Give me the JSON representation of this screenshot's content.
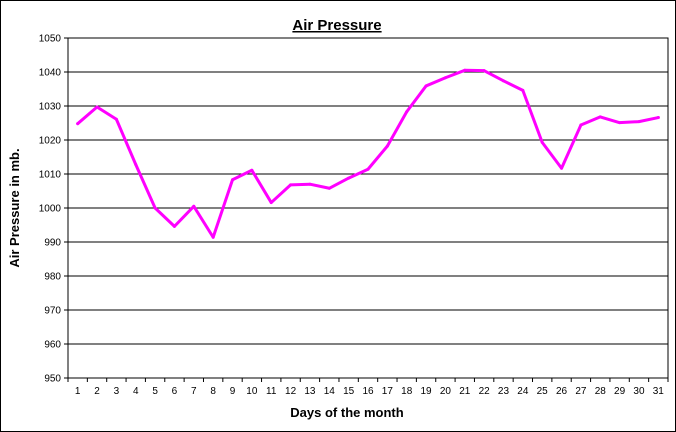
{
  "chart_data": {
    "type": "line",
    "title": "Air Pressure",
    "xlabel": "Days of the month",
    "ylabel": "Air Pressure in mb.",
    "ylim": [
      950,
      1050
    ],
    "ytick_step": 10,
    "grid": "horizontal",
    "legend": "none",
    "line_color": "#ff00ff",
    "categories": [
      "1",
      "2",
      "3",
      "4",
      "5",
      "6",
      "7",
      "8",
      "9",
      "10",
      "11",
      "12",
      "13",
      "14",
      "15",
      "16",
      "17",
      "18",
      "19",
      "20",
      "21",
      "22",
      "23",
      "24",
      "25",
      "26",
      "27",
      "28",
      "29",
      "30",
      "31"
    ],
    "series": [
      {
        "values": [
          1024.8,
          1029.7,
          1026.1,
          1012.8,
          1000.0,
          994.6,
          1000.5,
          991.4,
          1008.3,
          1011.1,
          1001.6,
          1006.8,
          1007.0,
          1005.8,
          1008.8,
          1011.4,
          1018.2,
          1028.3,
          1035.9,
          1038.3,
          1040.5,
          1040.4,
          1037.4,
          1034.6,
          1019.3,
          1011.7,
          1024.4,
          1026.8,
          1025.1,
          1025.4,
          1026.6
        ]
      }
    ]
  }
}
